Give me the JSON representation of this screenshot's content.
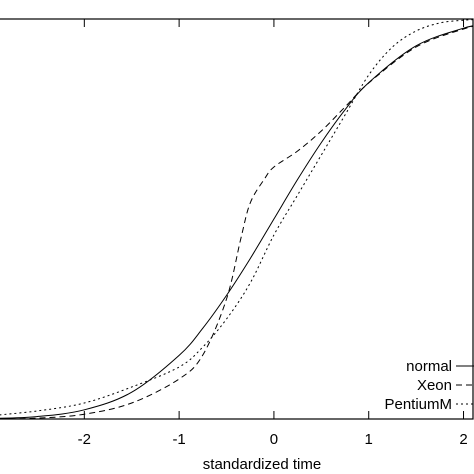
{
  "chart_data": {
    "type": "line",
    "title": "",
    "xlabel": "standardized time",
    "ylabel": "",
    "xlim": [
      -2.9,
      2.1
    ],
    "ylim": [
      0,
      1
    ],
    "grid": false,
    "legend_position": "bottom-right",
    "xticks": [
      -2,
      -1,
      0,
      1,
      2
    ],
    "xtick_labels": [
      "-2",
      "-1",
      "0",
      "1",
      "2"
    ],
    "series": [
      {
        "name": "normal",
        "style": "solid",
        "color": "#000000",
        "x": [
          -3.0,
          -2.5,
          -2.0,
          -1.5,
          -1.0,
          -0.75,
          -0.5,
          -0.25,
          0.0,
          0.25,
          0.5,
          0.75,
          1.0,
          1.5,
          2.0,
          2.2
        ],
        "y": [
          0.001,
          0.006,
          0.023,
          0.067,
          0.159,
          0.227,
          0.309,
          0.401,
          0.5,
          0.599,
          0.691,
          0.773,
          0.841,
          0.933,
          0.977,
          0.986
        ]
      },
      {
        "name": "Xeon",
        "style": "dashed",
        "color": "#000000",
        "x": [
          -3.0,
          -2.5,
          -2.0,
          -1.5,
          -1.0,
          -0.75,
          -0.5,
          -0.35,
          -0.25,
          -0.1,
          0.0,
          0.25,
          0.5,
          0.75,
          1.0,
          1.5,
          2.0,
          2.2
        ],
        "y": [
          0.0,
          0.002,
          0.012,
          0.04,
          0.1,
          0.16,
          0.3,
          0.45,
          0.54,
          0.6,
          0.63,
          0.67,
          0.72,
          0.78,
          0.84,
          0.93,
          0.975,
          0.985
        ]
      },
      {
        "name": "PentiumM",
        "style": "dotted",
        "color": "#000000",
        "x": [
          -3.0,
          -2.5,
          -2.0,
          -1.5,
          -1.0,
          -0.75,
          -0.5,
          -0.25,
          0.0,
          0.25,
          0.5,
          0.75,
          1.0,
          1.25,
          1.5,
          1.75,
          2.0,
          2.2
        ],
        "y": [
          0.008,
          0.02,
          0.04,
          0.08,
          0.13,
          0.18,
          0.25,
          0.34,
          0.46,
          0.56,
          0.66,
          0.76,
          0.86,
          0.93,
          0.97,
          0.99,
          0.997,
          0.999
        ]
      }
    ]
  }
}
